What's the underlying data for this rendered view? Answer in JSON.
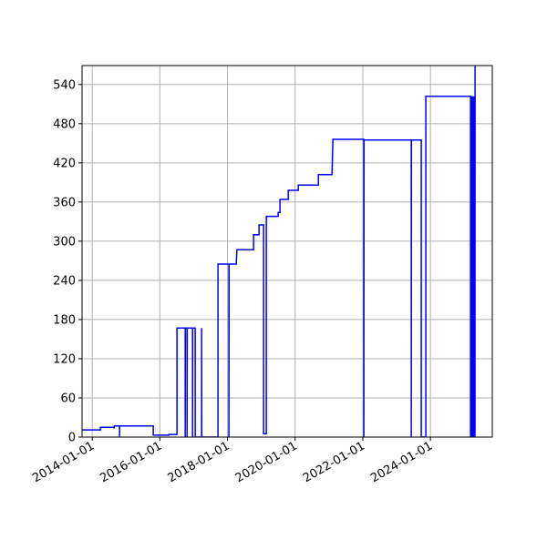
{
  "chart_data": {
    "type": "line",
    "title": "",
    "xlabel": "",
    "ylabel": "",
    "xlim": [
      "2013-09-13",
      "2025-10-30"
    ],
    "ylim": [
      0,
      569
    ],
    "grid": true,
    "line_color": "#0000ff",
    "x_ticks": [
      "2014-01-01",
      "2016-01-01",
      "2018-01-01",
      "2020-01-01",
      "2022-01-01",
      "2024-01-01"
    ],
    "y_ticks": [
      0,
      60,
      120,
      180,
      240,
      300,
      360,
      420,
      480,
      540
    ],
    "series": [
      {
        "points": [
          [
            "2013-09-13",
            11
          ],
          [
            "2014-03-30",
            11
          ],
          [
            "2014-03-30",
            15
          ],
          [
            "2014-08-25",
            15
          ],
          [
            "2014-08-25",
            13
          ],
          [
            "2014-08-28",
            17
          ],
          [
            "2014-10-23",
            17
          ],
          [
            "2014-10-23",
            0
          ],
          [
            "2014-10-24",
            17
          ],
          [
            "2015-10-22",
            17
          ],
          [
            "2015-10-22",
            3
          ],
          [
            "2016-04-07",
            3
          ],
          [
            "2016-04-07",
            4
          ],
          [
            "2016-07-04",
            4
          ],
          [
            "2016-07-04",
            167
          ],
          [
            "2016-10-01",
            167
          ],
          [
            "2016-10-01",
            0
          ],
          [
            "2016-10-03",
            167
          ],
          [
            "2016-10-21",
            167
          ],
          [
            "2016-10-21",
            0
          ],
          [
            "2016-10-23",
            167
          ],
          [
            "2016-12-19",
            167
          ],
          [
            "2016-12-19",
            0
          ],
          [
            "2016-12-21",
            167
          ],
          [
            "2017-01-17",
            167
          ],
          [
            "2017-01-17",
            0
          ],
          [
            "2017-03-27",
            0
          ],
          [
            "2017-03-27",
            167
          ],
          [
            "2017-03-29",
            0
          ],
          [
            "2017-09-20",
            0
          ],
          [
            "2017-09-20",
            265
          ],
          [
            "2018-01-16",
            265
          ],
          [
            "2018-01-16",
            0
          ],
          [
            "2018-01-18",
            265
          ],
          [
            "2018-04-05",
            265
          ],
          [
            "2018-04-12",
            287
          ],
          [
            "2018-10-09",
            287
          ],
          [
            "2018-10-09",
            310
          ],
          [
            "2018-12-07",
            310
          ],
          [
            "2018-12-07",
            325
          ],
          [
            "2019-01-25",
            325
          ],
          [
            "2019-01-25",
            5
          ],
          [
            "2019-02-24",
            5
          ],
          [
            "2019-02-24",
            338
          ],
          [
            "2019-07-01",
            338
          ],
          [
            "2019-07-01",
            344
          ],
          [
            "2019-07-21",
            344
          ],
          [
            "2019-07-21",
            364
          ],
          [
            "2019-10-18",
            364
          ],
          [
            "2019-10-18",
            378
          ],
          [
            "2020-02-04",
            378
          ],
          [
            "2020-02-04",
            386
          ],
          [
            "2020-09-08",
            386
          ],
          [
            "2020-09-08",
            402
          ],
          [
            "2021-02-02",
            402
          ],
          [
            "2021-02-12",
            456
          ],
          [
            "2022-01-12",
            456
          ],
          [
            "2022-01-12",
            0
          ],
          [
            "2022-01-14",
            455
          ],
          [
            "2023-06-08",
            455
          ],
          [
            "2023-06-08",
            0
          ],
          [
            "2023-06-10",
            455
          ],
          [
            "2023-09-24",
            455
          ],
          [
            "2023-09-24",
            0
          ],
          [
            "2023-11-12",
            0
          ],
          [
            "2023-11-12",
            522
          ],
          [
            "2025-03-09",
            522
          ],
          [
            "2025-03-09",
            0
          ],
          [
            "2025-03-12",
            522
          ],
          [
            "2025-03-15",
            0
          ],
          [
            "2025-03-18",
            522
          ],
          [
            "2025-03-21",
            0
          ],
          [
            "2025-03-24",
            522
          ],
          [
            "2025-03-27",
            0
          ],
          [
            "2025-03-30",
            522
          ],
          [
            "2025-04-02",
            0
          ],
          [
            "2025-04-05",
            522
          ],
          [
            "2025-04-08",
            0
          ],
          [
            "2025-04-11",
            522
          ],
          [
            "2025-04-14",
            0
          ],
          [
            "2025-04-17",
            522
          ],
          [
            "2025-04-20",
            0
          ],
          [
            "2025-04-23",
            522
          ],
          [
            "2025-04-26",
            0
          ],
          [
            "2025-04-27",
            575
          ]
        ]
      }
    ]
  }
}
